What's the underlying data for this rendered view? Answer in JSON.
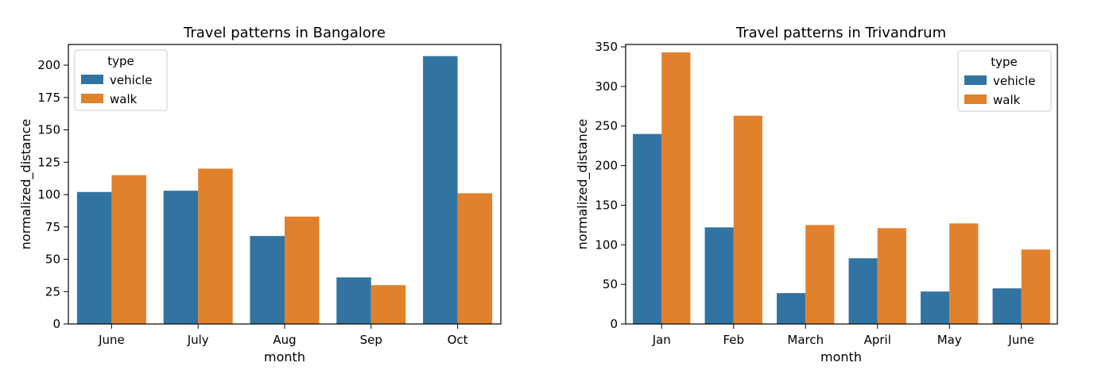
{
  "colors": {
    "vehicle": "#3274a1",
    "walk": "#e1812c"
  },
  "chart_data": [
    {
      "type": "bar",
      "title": "Travel patterns in Bangalore",
      "xlabel": "month",
      "ylabel": "normalized_distance",
      "categories": [
        "June",
        "July",
        "Aug",
        "Sep",
        "Oct"
      ],
      "ylim": [
        0,
        216
      ],
      "yticks": [
        0,
        25,
        50,
        75,
        100,
        125,
        150,
        175,
        200
      ],
      "legend": {
        "title": "type",
        "position": "top-left"
      },
      "series": [
        {
          "name": "vehicle",
          "values": [
            102,
            103,
            68,
            36,
            207
          ]
        },
        {
          "name": "walk",
          "values": [
            115,
            120,
            83,
            30,
            101
          ]
        }
      ]
    },
    {
      "type": "bar",
      "title": "Travel patterns in Trivandrum",
      "xlabel": "month",
      "ylabel": "normalized_distance",
      "categories": [
        "Jan",
        "Feb",
        "March",
        "April",
        "May",
        "June"
      ],
      "ylim": [
        0,
        353
      ],
      "yticks": [
        0,
        50,
        100,
        150,
        200,
        250,
        300,
        350
      ],
      "legend": {
        "title": "type",
        "position": "top-right"
      },
      "series": [
        {
          "name": "vehicle",
          "values": [
            240,
            122,
            39,
            83,
            41,
            45
          ]
        },
        {
          "name": "walk",
          "values": [
            343,
            263,
            125,
            121,
            127,
            94
          ]
        }
      ]
    }
  ]
}
